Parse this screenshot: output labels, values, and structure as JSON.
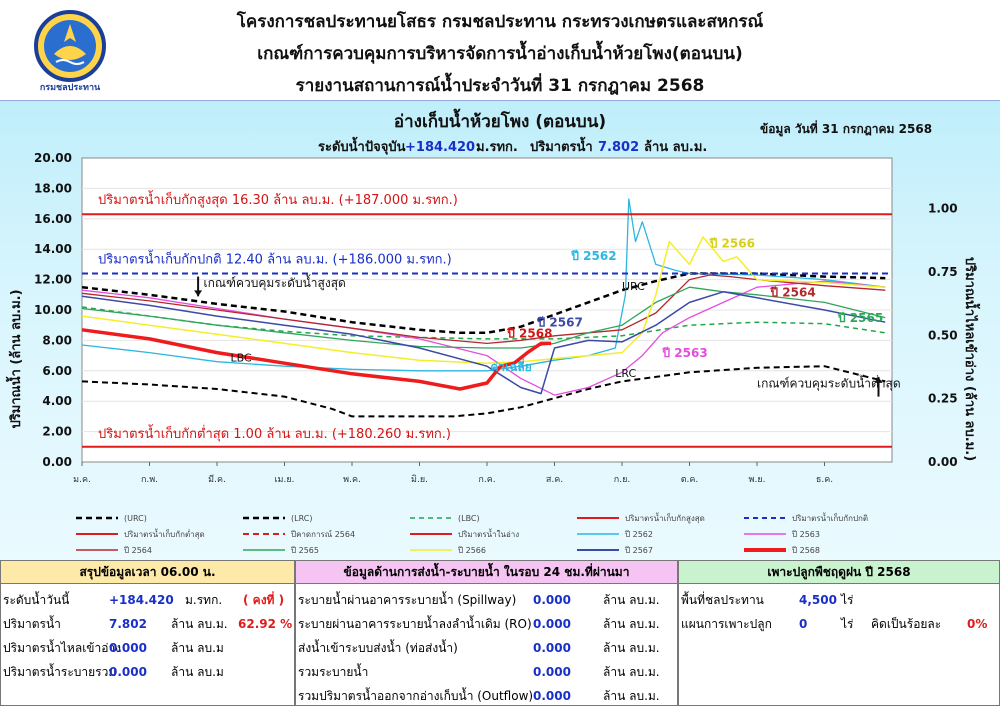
{
  "header": {
    "org_logo_text": "กรมชลประทาน",
    "title1": "โครงการชลประทานยโสธร กรมชลประทาน กระทรวงเกษตรและสหกรณ์",
    "title2": "เกณฑ์การควบคุมการบริหารจัดการน้ำอ่างเก็บน้ำห้วยโพง(ตอนบน)",
    "title3": "รายงานสถานการณ์น้ำประจำวันที่ 31 กรกฎาคม 2568"
  },
  "chart_data": {
    "type": "line",
    "title": "อ่างเก็บน้ำห้วยโพง (ตอนบน)",
    "subtitle_prefix": "ระดับน้ำปัจจุบัน",
    "subtitle_level": "+184.420",
    "subtitle_level_unit": "ม.รทก.",
    "subtitle_vol_prefix": "ปริมาตรน้ำ",
    "subtitle_vol": "7.802",
    "subtitle_vol_unit": "ล้าน ลบ.ม.",
    "data_date": "ข้อมูล วันที่  31 กรกฎาคม 2568",
    "ylabel": "ปริมาณน้ำ (ล้าน ลบ.ม.)",
    "y2label": "ปริมาณน้ำไหลเข้าอ่าง (ล้าน ลบ.ม.)",
    "ylim": [
      0,
      20
    ],
    "y2lim": [
      0,
      1.2
    ],
    "yticks": [
      "0.00",
      "2.00",
      "4.00",
      "6.00",
      "8.00",
      "10.00",
      "12.00",
      "14.00",
      "16.00",
      "18.00",
      "20.00"
    ],
    "y2ticks": [
      "0.00",
      "0.25",
      "0.50",
      "0.75",
      "1.00"
    ],
    "months": [
      "ม.ค.",
      "ก.พ.",
      "มี.ค.",
      "เม.ย.",
      "พ.ค.",
      "มิ.ย.",
      "ก.ค.",
      "ส.ค.",
      "ก.ย.",
      "ต.ค.",
      "พ.ย.",
      "ธ.ค."
    ],
    "max_label": "ปริมาตรน้ำเก็บกักสูงสุด  16.30  ล้าน ลบ.ม. (+187.000 ม.รทก.)",
    "max_value": 16.3,
    "normal_label": "ปริมาตรน้ำเก็บกักปกติ 12.40 ล้าน ลบ.ม. (+186.000 ม.รทก.)",
    "normal_value": 12.4,
    "min_label": "ปริมาตรน้ำเก็บกักต่ำสุด  1.00  ล้าน ลบ.ม. (+180.260 ม.รทก.)",
    "min_value": 1.0,
    "annotations": {
      "urc_rule": "เกณฑ์ควบคุมระดับน้ำสูงสุด",
      "lrc_rule": "เกณฑ์ควบคุมระดับน้ำต่ำสุด",
      "urc": "URC",
      "lrc": "LRC",
      "lbc": "LBC",
      "avg": "ค่าเฉลี่ย",
      "y2562": "ปี 2562",
      "y2563": "ปี 2563",
      "y2564": "ปี 2564",
      "y2565": "ปี 2565",
      "y2566": "ปี 2566",
      "y2567": "ปี 2567",
      "y2568": "ปี 2568"
    },
    "series": [
      {
        "key": "urc",
        "name": "(URC)",
        "color": "#000000",
        "dash": "6,4",
        "width": 2.5,
        "x": [
          0,
          1,
          2,
          3,
          4,
          5,
          5.6,
          6,
          6.5,
          7,
          7.5,
          8,
          8.5,
          9,
          9.5,
          10,
          11,
          11.9
        ],
        "y": [
          11.5,
          11.0,
          10.4,
          9.9,
          9.2,
          8.7,
          8.5,
          8.5,
          8.9,
          9.7,
          10.5,
          11.3,
          11.9,
          12.4,
          12.4,
          12.4,
          12.2,
          12.1
        ]
      },
      {
        "key": "lrc",
        "name": "(LRC)",
        "color": "#000000",
        "dash": "6,4",
        "width": 2,
        "x": [
          0,
          1,
          2,
          3,
          3.7,
          4,
          5,
          5.5,
          6,
          6.5,
          7,
          7.5,
          8,
          8.5,
          9,
          10,
          11,
          11.9
        ],
        "y": [
          5.3,
          5.1,
          4.8,
          4.3,
          3.5,
          3.0,
          3.0,
          3.0,
          3.2,
          3.6,
          4.2,
          4.8,
          5.3,
          5.6,
          5.9,
          6.2,
          6.3,
          5.3
        ]
      },
      {
        "key": "lbc",
        "name": "(LBC)",
        "color": "#21a84a",
        "dash": "5,4",
        "width": 1.5,
        "x": [
          0,
          1,
          2,
          3,
          4,
          5,
          6,
          7,
          7.5,
          8,
          9,
          10,
          11,
          11.9
        ],
        "y": [
          10.2,
          9.6,
          9.0,
          8.6,
          8.3,
          8.2,
          8.1,
          8.1,
          8.2,
          8.3,
          9.0,
          9.2,
          9.1,
          8.5
        ]
      },
      {
        "key": "y2562",
        "name": "ปี 2562",
        "color": "#2bb7df",
        "dash": "",
        "width": 1.3,
        "x": [
          0,
          1,
          2,
          3,
          4,
          5,
          6,
          6.5,
          7,
          7.5,
          7.9,
          8.05,
          8.1,
          8.2,
          8.3,
          8.5,
          8.8,
          9,
          10,
          11,
          11.9
        ],
        "y": [
          7.7,
          7.2,
          6.6,
          6.3,
          6.1,
          6.0,
          6.0,
          6.3,
          6.7,
          7.0,
          7.5,
          11.0,
          17.3,
          14.5,
          15.8,
          13.0,
          12.6,
          12.4,
          12.3,
          12.0,
          11.5
        ]
      },
      {
        "key": "y2563",
        "name": "ปี 2563",
        "color": "#e54ddf",
        "dash": "",
        "width": 1.3,
        "x": [
          0,
          1,
          2,
          3,
          4,
          5,
          6,
          6.5,
          7,
          7.5,
          8,
          8.3,
          8.6,
          9,
          9.5,
          10,
          11,
          11.9
        ],
        "y": [
          11.3,
          10.8,
          10.1,
          9.4,
          8.8,
          8.1,
          7.0,
          5.5,
          4.4,
          4.9,
          5.9,
          7.0,
          8.5,
          9.5,
          10.5,
          11.5,
          11.9,
          11.5
        ]
      },
      {
        "key": "y2564",
        "name": "ปี 2564",
        "color": "#b4282d",
        "dash": "",
        "width": 1.3,
        "x": [
          0,
          1,
          2,
          3,
          4,
          5,
          6,
          6.5,
          7,
          7.5,
          8,
          8.5,
          9,
          9.3,
          9.6,
          10,
          11,
          11.9
        ],
        "y": [
          11.1,
          10.6,
          10.0,
          9.4,
          8.8,
          8.2,
          7.8,
          8.0,
          8.3,
          8.5,
          8.7,
          9.8,
          12.0,
          12.3,
          12.2,
          12.0,
          11.6,
          11.3
        ]
      },
      {
        "key": "y2565",
        "name": "ปี 2565",
        "color": "#2ea65a",
        "dash": "",
        "width": 1.3,
        "x": [
          0,
          1,
          2,
          3,
          4,
          5,
          6,
          6.5,
          7,
          7.5,
          8,
          8.5,
          9,
          9.5,
          10,
          11,
          11.9
        ],
        "y": [
          10.1,
          9.6,
          9.0,
          8.5,
          8.0,
          7.6,
          7.5,
          7.5,
          7.8,
          8.5,
          9.0,
          10.5,
          11.5,
          11.2,
          11.0,
          10.5,
          9.5
        ]
      },
      {
        "key": "y2566",
        "name": "ปี 2566",
        "color": "#f4ee2a",
        "dash": "",
        "width": 1.5,
        "x": [
          0,
          1,
          2,
          3,
          4,
          5,
          6,
          6.5,
          7,
          7.5,
          8,
          8.3,
          8.5,
          8.7,
          9,
          9.2,
          9.5,
          9.7,
          10,
          11,
          11.9
        ],
        "y": [
          9.6,
          9.0,
          8.4,
          7.8,
          7.2,
          6.7,
          6.5,
          6.6,
          6.8,
          7.0,
          7.2,
          8.5,
          11.0,
          14.5,
          13.0,
          14.8,
          13.2,
          13.5,
          12.0,
          11.8,
          11.5
        ]
      },
      {
        "key": "y2567",
        "name": "ปี 2567",
        "color": "#3b4aa8",
        "dash": "",
        "width": 1.5,
        "x": [
          0,
          1,
          2,
          3,
          4,
          5,
          6,
          6.5,
          6.8,
          7,
          7.5,
          8,
          8.5,
          9,
          9.5,
          10,
          11,
          11.9
        ],
        "y": [
          10.9,
          10.3,
          9.6,
          9.0,
          8.4,
          7.5,
          6.3,
          4.9,
          4.5,
          7.5,
          8.0,
          7.9,
          9.0,
          10.5,
          11.2,
          10.8,
          10.0,
          9.2
        ]
      },
      {
        "key": "y2568",
        "name": "ปี 2568",
        "color": "#ee1c1c",
        "dash": "",
        "width": 3.5,
        "x": [
          0,
          1,
          2,
          3,
          4,
          5,
          5.6,
          6,
          6.2,
          6.4,
          6.6,
          6.8,
          6.95
        ],
        "y": [
          8.7,
          8.1,
          7.2,
          6.5,
          5.8,
          5.3,
          4.8,
          5.2,
          6.3,
          6.5,
          7.2,
          7.8,
          7.8
        ]
      }
    ],
    "legend": [
      {
        "label": "(URC)",
        "color": "#000000",
        "dash": "6,4",
        "width": 2.5
      },
      {
        "label": "(LRC)",
        "color": "#000000",
        "dash": "6,4",
        "width": 2.5
      },
      {
        "label": "(LBC)",
        "color": "#21a84a",
        "dash": "5,4",
        "width": 1.5
      },
      {
        "label": "ปริมาตรน้ำเก็บกักสูงสุด",
        "color": "#e01b1b",
        "dash": "",
        "width": 2
      },
      {
        "label": "ปริมาตรน้ำเก็บกักปกติ",
        "color": "#1a2fc8",
        "dash": "5,4",
        "width": 2
      },
      {
        "label": "ปริมาตรน้ำเก็บกักต่ำสุด",
        "color": "#e01b1b",
        "dash": "",
        "width": 2
      },
      {
        "label": "ปีคาดการณ์ 2564",
        "color": "#e01b1b",
        "dash": "6,4",
        "width": 2
      },
      {
        "label": "ปริมาตรน้ำในอ่าง",
        "color": "#e01b1b",
        "dash": "",
        "width": 2
      },
      {
        "label": "ปี 2562",
        "color": "#2bb7df",
        "dash": "",
        "width": 1.5
      },
      {
        "label": "ปี 2563",
        "color": "#e54ddf",
        "dash": "",
        "width": 1.5
      },
      {
        "label": "ปี 2564",
        "color": "#b4282d",
        "dash": "",
        "width": 1.5
      },
      {
        "label": "ปี 2565",
        "color": "#2ea65a",
        "dash": "",
        "width": 1.5
      },
      {
        "label": "ปี 2566",
        "color": "#f4ee2a",
        "dash": "",
        "width": 1.5
      },
      {
        "label": "ปี 2567",
        "color": "#3b4aa8",
        "dash": "",
        "width": 2
      },
      {
        "label": "ปี 2568",
        "color": "#ee1c1c",
        "dash": "",
        "width": 4
      }
    ]
  },
  "summary": {
    "title": "สรุปข้อมูลเวลา 06.00 น.",
    "level_label": "ระดับน้ำวันนี้",
    "level_value": "+184.420",
    "level_unit": "ม.รทก.",
    "level_status": "( คงที่ )",
    "volume_label": "ปริมาตรน้ำ",
    "volume_value": "7.802",
    "volume_unit": "ล้าน ลบ.ม.",
    "volume_percent": "62.92 %",
    "inflow_label": "ปริมาตรน้ำไหลเข้าอ่าง",
    "inflow_value": "0.000",
    "inflow_unit": "ล้าน ลบ.ม",
    "release_label": "ปริมาตรน้ำระบายรวม",
    "release_value": "0.000",
    "release_unit": "ล้าน ลบ.ม"
  },
  "release": {
    "title": "ข้อมูลด้านการส่งน้ำ-ระบายน้ำ ในรอบ 24 ชม.ที่ผ่านมา",
    "rows": [
      {
        "label": "ระบายน้ำผ่านอาคารระบายน้ำ (Spillway)",
        "value": "0.000",
        "unit": "ล้าน ลบ.ม."
      },
      {
        "label": "ระบายผ่านอาคารระบายน้ำลงลำน้ำเดิม (RO)",
        "value": "0.000",
        "unit": "ล้าน ลบ.ม."
      },
      {
        "label": "ส่งน้ำเข้าระบบส่งน้ำ (ท่อส่งน้ำ)",
        "value": "0.000",
        "unit": "ล้าน ลบ.ม."
      },
      {
        "label": "รวมระบายน้ำ",
        "value": "0.000",
        "unit": "ล้าน ลบ.ม."
      },
      {
        "label": "รวมปริมาตรน้ำออกจากอ่างเก็บน้ำ (Outflow)",
        "value": "0.000",
        "unit": "ล้าน ลบ.ม."
      }
    ]
  },
  "crop": {
    "title": "เพาะปลูกพืชฤดูฝน ปี 2568",
    "area_label": "พื้นที่ชลประทาน",
    "area_value": "4,500",
    "area_unit": "ไร่",
    "plan_label": "แผนการเพาะปลูก",
    "plan_value": "0",
    "plan_unit": "ไร่",
    "plan_pct_label": "คิดเป็นร้อยละ",
    "plan_pct_value": "0%"
  }
}
